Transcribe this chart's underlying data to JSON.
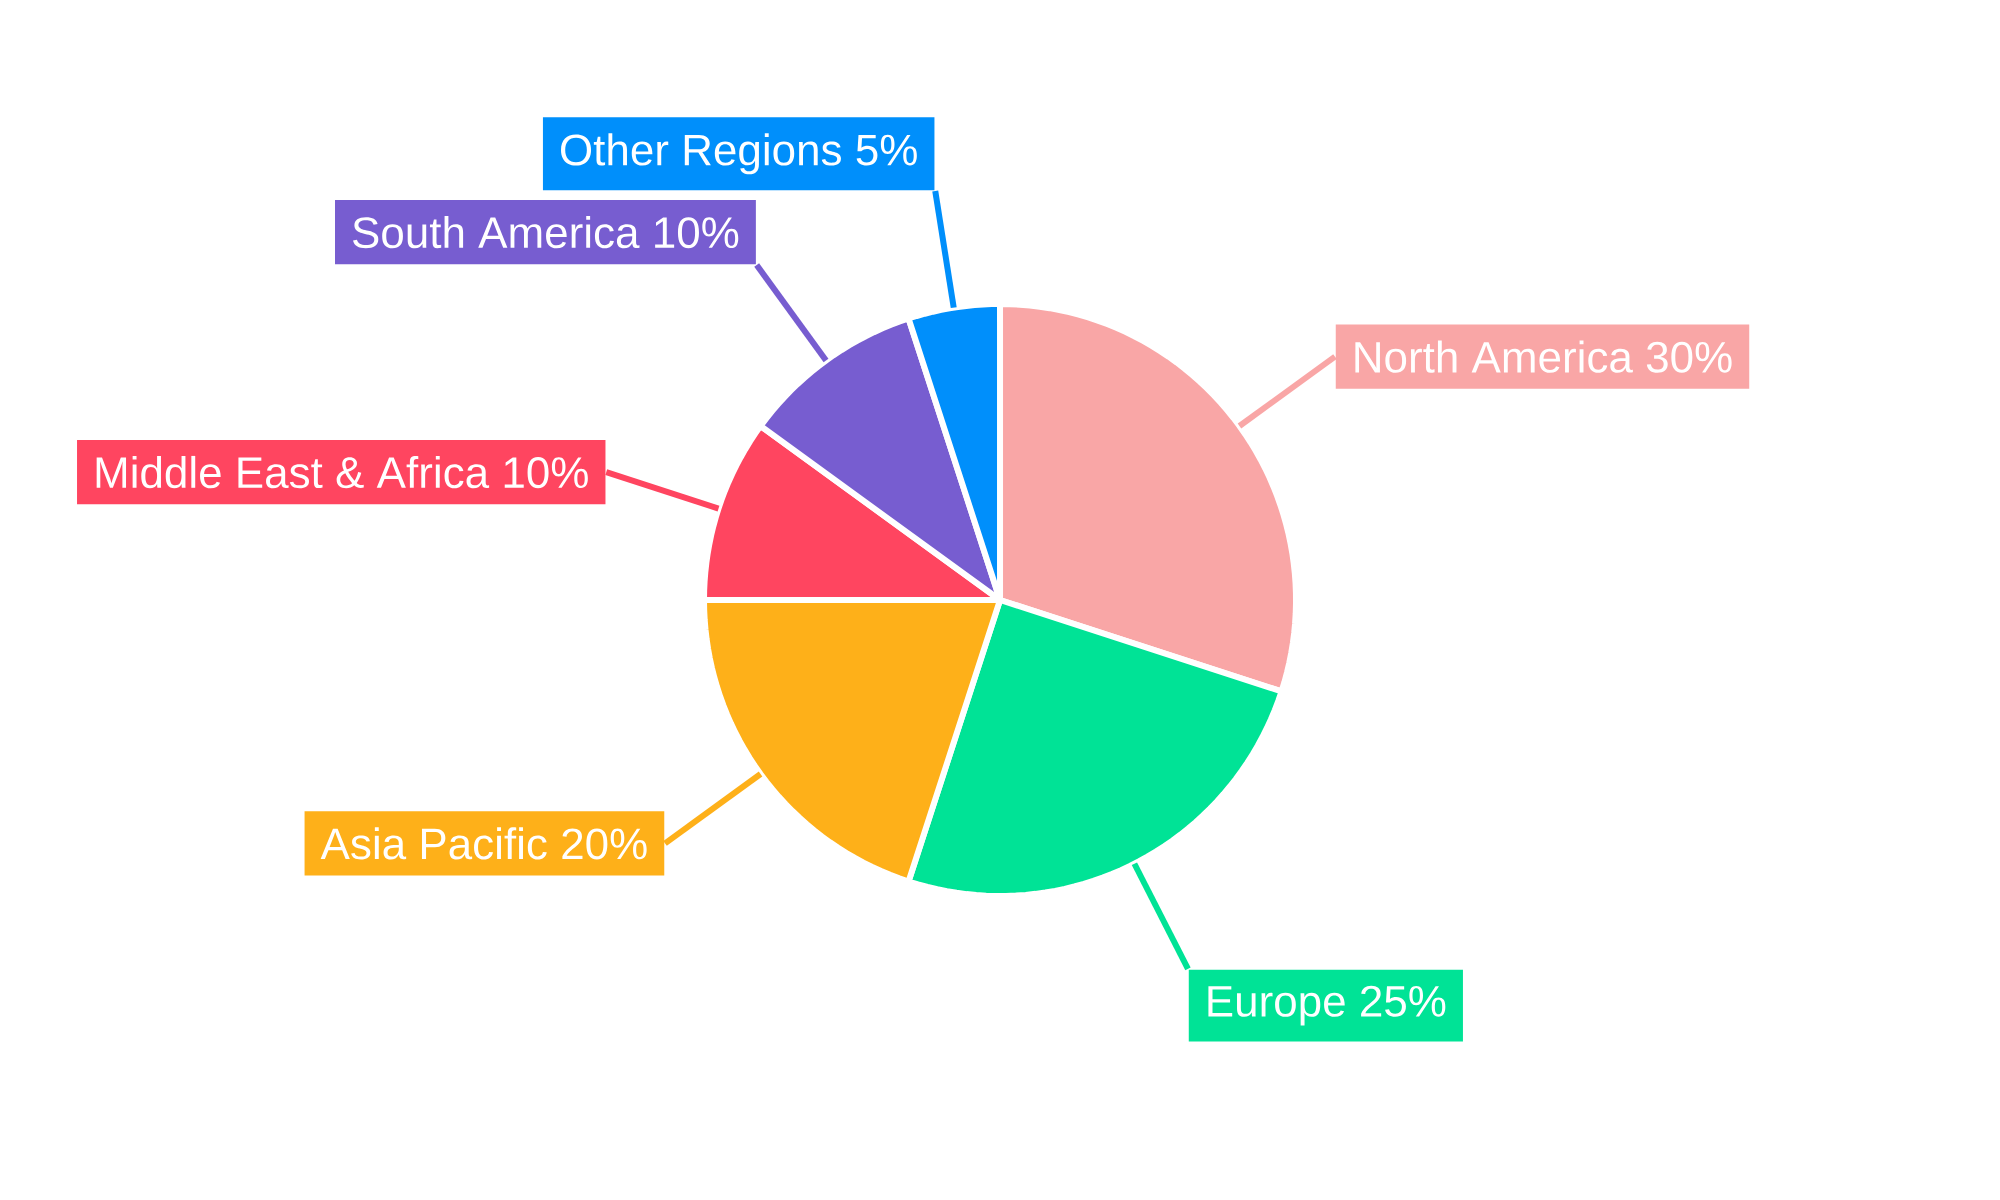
{
  "chart_data": {
    "type": "pie",
    "categories": [
      "North America",
      "Europe",
      "Asia Pacific",
      "Middle East & Africa",
      "South America",
      "Other Regions"
    ],
    "values": [
      30,
      25,
      20,
      10,
      10,
      5
    ],
    "value_labels": [
      "30%",
      "25%",
      "20%",
      "10%",
      "10%",
      "5%"
    ],
    "colors": [
      "#f9a6a6",
      "#00e396",
      "#feb019",
      "#ff4560",
      "#775dd0",
      "#008ffb"
    ]
  }
}
